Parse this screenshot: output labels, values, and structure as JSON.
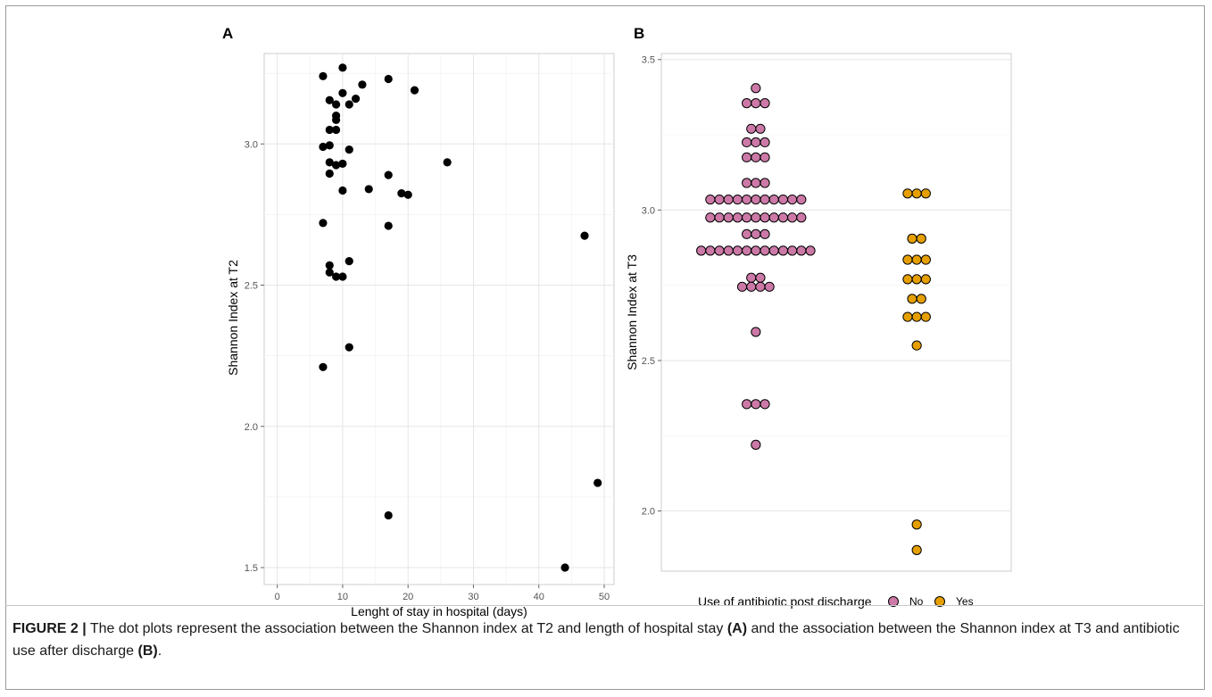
{
  "figure": {
    "caption_label": "FIGURE 2 |",
    "caption_text_1": " The dot plots represent the association between the Shannon index at T2 and length of hospital stay ",
    "caption_ref_a": "(A)",
    "caption_text_2": " and the association between the Shannon index at T3 and antibiotic use after discharge ",
    "caption_ref_b": "(B)",
    "caption_text_3": "."
  },
  "chart_data": [
    {
      "panel": "A",
      "type": "scatter",
      "xlabel": "Lenght of stay in hospital (days)",
      "ylabel": "Shannon Index at T2",
      "xlim": [
        -2,
        51.5
      ],
      "ylim": [
        1.44,
        3.32
      ],
      "xticks": [
        0,
        10,
        20,
        30,
        40,
        50
      ],
      "yticks": [
        1.5,
        2.0,
        2.5,
        3.0
      ],
      "ytick_labels": [
        "1.5",
        "2.0",
        "2.5",
        "3.0"
      ],
      "grid": true,
      "color": "#000000",
      "points": [
        [
          7,
          3.24
        ],
        [
          10,
          3.27
        ],
        [
          13,
          3.21
        ],
        [
          17,
          3.23
        ],
        [
          21,
          3.19
        ],
        [
          8,
          3.155
        ],
        [
          9,
          3.14
        ],
        [
          10,
          3.18
        ],
        [
          11,
          3.14
        ],
        [
          12,
          3.16
        ],
        [
          9,
          3.1
        ],
        [
          9,
          3.085
        ],
        [
          8,
          3.05
        ],
        [
          9,
          3.05
        ],
        [
          7,
          2.99
        ],
        [
          8,
          2.995
        ],
        [
          11,
          2.98
        ],
        [
          8,
          2.935
        ],
        [
          9,
          2.925
        ],
        [
          10,
          2.93
        ],
        [
          26,
          2.935
        ],
        [
          8,
          2.895
        ],
        [
          17,
          2.89
        ],
        [
          10,
          2.835
        ],
        [
          14,
          2.84
        ],
        [
          19,
          2.825
        ],
        [
          20,
          2.82
        ],
        [
          7,
          2.72
        ],
        [
          17,
          2.71
        ],
        [
          47,
          2.675
        ],
        [
          11,
          2.585
        ],
        [
          8,
          2.57
        ],
        [
          8,
          2.545
        ],
        [
          9,
          2.53
        ],
        [
          10,
          2.53
        ],
        [
          11,
          2.28
        ],
        [
          7,
          2.21
        ],
        [
          49,
          1.8
        ],
        [
          17,
          1.685
        ],
        [
          44,
          1.5
        ]
      ]
    },
    {
      "panel": "B",
      "type": "dotplot",
      "xlabel": "",
      "ylabel": "Shannon Index at T3",
      "ylim": [
        1.8,
        3.52
      ],
      "yticks": [
        2.0,
        2.5,
        3.0,
        3.5
      ],
      "ytick_labels": [
        "2.0",
        "2.5",
        "3.0",
        "3.5"
      ],
      "grid": true,
      "legend_title": "Use of antibiotic post discharge",
      "legend_position": "bottom",
      "series": [
        {
          "name": "No",
          "color": "#cc79a7",
          "bins": [
            [
              3.405,
              1
            ],
            [
              3.355,
              3
            ],
            [
              3.27,
              2
            ],
            [
              3.225,
              3
            ],
            [
              3.175,
              3
            ],
            [
              3.09,
              3
            ],
            [
              3.035,
              11
            ],
            [
              2.975,
              11
            ],
            [
              2.92,
              3
            ],
            [
              2.865,
              13
            ],
            [
              2.775,
              2
            ],
            [
              2.745,
              4
            ],
            [
              2.595,
              1
            ],
            [
              2.355,
              3
            ],
            [
              2.22,
              1
            ]
          ]
        },
        {
          "name": "Yes",
          "color": "#e69f00",
          "bins": [
            [
              3.055,
              3
            ],
            [
              2.905,
              2
            ],
            [
              2.835,
              3
            ],
            [
              2.77,
              3
            ],
            [
              2.705,
              2
            ],
            [
              2.645,
              3
            ],
            [
              2.55,
              1
            ],
            [
              1.955,
              1
            ],
            [
              1.87,
              1
            ]
          ]
        }
      ]
    }
  ]
}
